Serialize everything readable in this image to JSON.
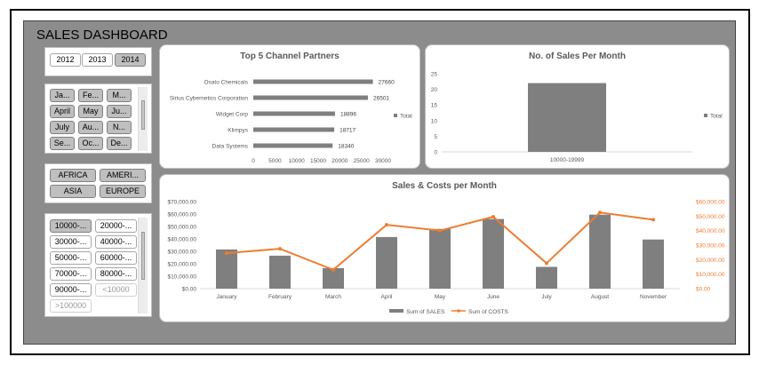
{
  "dashboard": {
    "title": "SALES DASHBOARD"
  },
  "slicers": {
    "years": [
      {
        "label": "2012",
        "selected": false
      },
      {
        "label": "2013",
        "selected": false
      },
      {
        "label": "2014",
        "selected": true
      }
    ],
    "months": [
      {
        "label": "Ja..."
      },
      {
        "label": "Fe..."
      },
      {
        "label": "M..."
      },
      {
        "label": "April"
      },
      {
        "label": "May"
      },
      {
        "label": "Ju..."
      },
      {
        "label": "July"
      },
      {
        "label": "Au..."
      },
      {
        "label": "N..."
      },
      {
        "label": "Se..."
      },
      {
        "label": "Oc..."
      },
      {
        "label": "De..."
      }
    ],
    "regions": [
      {
        "label": "AFRICA"
      },
      {
        "label": "AMERI..."
      },
      {
        "label": "ASIA"
      },
      {
        "label": "EUROPE"
      }
    ],
    "ranges": [
      {
        "label": "10000-...",
        "state": "selected"
      },
      {
        "label": "20000-...",
        "state": "normal"
      },
      {
        "label": "30000-...",
        "state": "normal"
      },
      {
        "label": "40000-...",
        "state": "normal"
      },
      {
        "label": "50000-...",
        "state": "normal"
      },
      {
        "label": "60000-...",
        "state": "normal"
      },
      {
        "label": "70000-...",
        "state": "normal"
      },
      {
        "label": "80000-...",
        "state": "normal"
      },
      {
        "label": "90000-...",
        "state": "normal"
      },
      {
        "label": "<10000",
        "state": "dim"
      },
      {
        "label": ">100000",
        "state": "dim"
      }
    ]
  },
  "colors": {
    "bar": "#7f7f7f",
    "line": "#ed7d31",
    "axis_text": "#595959",
    "secondary_axis_text": "#ed7d31"
  },
  "chart_data": [
    {
      "type": "bar",
      "title": "Top 5 Channel Partners",
      "orientation": "horizontal",
      "categories": [
        "Osato Chemicals",
        "Sirius Cybernetics Corporation",
        "Widget Corp",
        "Klimpys",
        "Data Systems"
      ],
      "values": [
        27660,
        26501,
        18896,
        18717,
        18340
      ],
      "data_labels": [
        "27660",
        "26501",
        "18896",
        "18717",
        "18340"
      ],
      "xlim": [
        0,
        30000
      ],
      "x_ticks": [
        "0",
        "5000",
        "10000",
        "15000",
        "20000",
        "25000",
        "30000"
      ],
      "legend": "Total",
      "legend_position": "right"
    },
    {
      "type": "bar",
      "title": "No. of Sales Per Month",
      "categories": [
        "10000-19999"
      ],
      "values": [
        22
      ],
      "ylim": [
        0,
        25
      ],
      "y_ticks": [
        "0",
        "5",
        "10",
        "15",
        "20",
        "25"
      ],
      "legend": "Total",
      "legend_position": "right"
    },
    {
      "type": "bar",
      "title": "Sales & Costs per Month",
      "categories": [
        "January",
        "February",
        "March",
        "April",
        "May",
        "June",
        "July",
        "August",
        "November"
      ],
      "series": [
        {
          "name": "Sum of SALES",
          "type": "bar",
          "axis": "left",
          "values": [
            31500,
            26500,
            16500,
            41500,
            48000,
            56000,
            17500,
            59500,
            39500
          ]
        },
        {
          "name": "Sum of COSTS",
          "type": "line",
          "axis": "right",
          "values": [
            24500,
            27500,
            13000,
            44000,
            40000,
            49500,
            17500,
            52500,
            47500
          ]
        }
      ],
      "ylim": [
        0,
        70000
      ],
      "y_ticks": [
        "$0.00",
        "$10,000.00",
        "$20,000.00",
        "$30,000.00",
        "$40,000.00",
        "$50,000.00",
        "$60,000.00",
        "$70,000.00"
      ],
      "y2lim": [
        0,
        60000
      ],
      "y2_ticks": [
        "$0.00",
        "$10,000.00",
        "$20,000.00",
        "$30,000.00",
        "$40,000.00",
        "$50,000.00",
        "$60,000.00"
      ],
      "legend_position": "bottom"
    }
  ]
}
